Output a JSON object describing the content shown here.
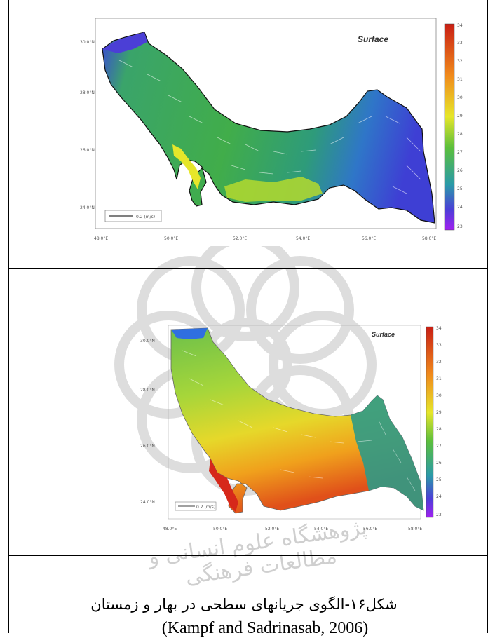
{
  "top_panel": {
    "title": "Surface",
    "lat_labels": [
      "30.0°N",
      "28.0°N",
      "26.0°N",
      "24.0°N"
    ],
    "lon_labels": [
      "48.0°E",
      "50.0°E",
      "52.0°E",
      "54.0°E",
      "56.0°E",
      "58.0°E"
    ],
    "legend_values": [
      "34",
      "33",
      "32",
      "31",
      "30",
      "29",
      "28",
      "27",
      "26",
      "25",
      "24",
      "23"
    ],
    "scale_label": "0.2 (m/s)"
  },
  "bottom_panel": {
    "title": "Surface",
    "lat_labels": [
      "30.0°N",
      "28.0°N",
      "26.0°N",
      "24.0°N"
    ],
    "lon_labels": [
      "48.0°E",
      "50.0°E",
      "52.0°E",
      "54.0°E",
      "56.0°E",
      "58.0°E"
    ],
    "legend_values": [
      "34",
      "33",
      "32",
      "31",
      "30",
      "29",
      "28",
      "27",
      "26",
      "25",
      "24",
      "23"
    ],
    "scale_label": "0.2 (m/s)"
  },
  "caption": {
    "persian": "شکل۱۶-الگوی جریانهای سطحی در بهار و زمستان",
    "citation": "(Kampf and Sadrinasab, 2006)"
  },
  "watermark_text": "پژوهشگاه علوم انسانی و مطالعات فرهنگی",
  "colors": {
    "scale": [
      "#a020f0",
      "#4b3fd6",
      "#2f6fe0",
      "#2a9aa8",
      "#33a660",
      "#5cbf3c",
      "#9fd33a",
      "#e6e62a",
      "#f5c21f",
      "#f08a1c",
      "#e04a18",
      "#c81e14"
    ]
  }
}
